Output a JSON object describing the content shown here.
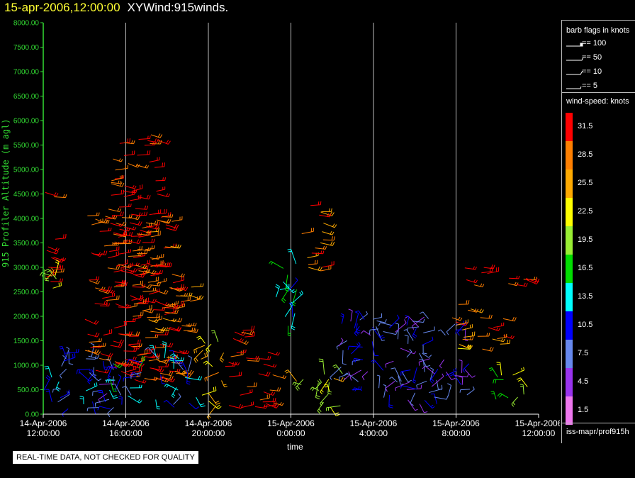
{
  "title": {
    "timestamp": "15-apr-2006,12:00:00",
    "product": "XYWind:915winds."
  },
  "notice": "REAL-TIME DATA, NOT CHECKED FOR QUALITY",
  "legend": {
    "barb_title": "barb flags in knots",
    "barb_entries": [
      "== 100",
      "== 50",
      "== 10",
      "== 5"
    ],
    "color_title": "wind-speed: knots",
    "color_scale": [
      {
        "label": "31.5",
        "color": "#ff0000"
      },
      {
        "label": "28.5",
        "color": "#ff7f00"
      },
      {
        "label": "25.5",
        "color": "#ffaa00"
      },
      {
        "label": "22.5",
        "color": "#ffff00"
      },
      {
        "label": "19.5",
        "color": "#99ee33"
      },
      {
        "label": "16.5",
        "color": "#00dd00"
      },
      {
        "label": "13.5",
        "color": "#00ffff"
      },
      {
        "label": "10.5",
        "color": "#0000ff"
      },
      {
        "label": "7.5",
        "color": "#6688ee"
      },
      {
        "label": "4.5",
        "color": "#9933ee"
      },
      {
        "label": "1.5",
        "color": "#ee77ee"
      }
    ],
    "source": "iss-mapr/prof915h"
  },
  "chart_data": {
    "type": "scatter",
    "xlabel": "time",
    "ylabel": "915 Profiler Altitude (m agl)",
    "x_range": [
      "14-Apr-2006 12:00:00",
      "15-Apr-2006 12:00:00"
    ],
    "ylim": [
      0,
      8000
    ],
    "y_ticks": [
      "0.00",
      "500.00",
      "1000.00",
      "1500.00",
      "2000.00",
      "2500.00",
      "3000.00",
      "3500.00",
      "4000.00",
      "4500.00",
      "5000.00",
      "5500.00",
      "6000.00",
      "6500.00",
      "7000.00",
      "7500.00",
      "8000.00"
    ],
    "x_ticks": [
      {
        "date": "14-Apr-2006",
        "time": "12:00:00"
      },
      {
        "date": "14-Apr-2006",
        "time": "16:00:00"
      },
      {
        "date": "14-Apr-2006",
        "time": "20:00:00"
      },
      {
        "date": "15-Apr-2006",
        "time": "0:00:00"
      },
      {
        "date": "15-Apr-2006",
        "time": "4:00:00"
      },
      {
        "date": "15-Apr-2006",
        "time": "8:00:00"
      },
      {
        "date": "15-Apr-2006",
        "time": "12:00:00"
      }
    ],
    "grid": "vertical",
    "colors": {
      "axis": "#33dd33",
      "grid": "#bbbbbb",
      "background": "#000000"
    },
    "series_note": "wind barbs colored by wind speed (knots)",
    "clusters": [
      {
        "hours": [
          0.0,
          0.6
        ],
        "alt": [
          2500,
          4800
        ],
        "speed": 31
      },
      {
        "hours": [
          0.0,
          0.7
        ],
        "alt": [
          2400,
          3000
        ],
        "speed": 23
      },
      {
        "hours": [
          0.0,
          3.5
        ],
        "alt": [
          100,
          1300
        ],
        "speed": 9
      },
      {
        "hours": [
          2.0,
          4.4
        ],
        "alt": [
          800,
          4500
        ],
        "speed": 31
      },
      {
        "hours": [
          3.2,
          5.6
        ],
        "alt": [
          900,
          5800
        ],
        "speed": 31
      },
      {
        "hours": [
          4.2,
          6.3
        ],
        "alt": [
          700,
          4200
        ],
        "speed": 30
      },
      {
        "hours": [
          5.4,
          7.3
        ],
        "alt": [
          800,
          2700
        ],
        "speed": 28
      },
      {
        "hours": [
          3.0,
          7.5
        ],
        "alt": [
          100,
          1200
        ],
        "speed": 12
      },
      {
        "hours": [
          7.6,
          8.8
        ],
        "alt": [
          100,
          1500
        ],
        "speed": 24
      },
      {
        "hours": [
          8.8,
          11.2
        ],
        "alt": [
          100,
          1300
        ],
        "speed": 31
      },
      {
        "hours": [
          9.1,
          9.9
        ],
        "alt": [
          1400,
          1800
        ],
        "speed": 31
      },
      {
        "hours": [
          11.2,
          12.3
        ],
        "alt": [
          1800,
          3300
        ],
        "speed": 13
      },
      {
        "hours": [
          12.4,
          13.6
        ],
        "alt": [
          2700,
          4300
        ],
        "speed": 29
      },
      {
        "hours": [
          12.2,
          14.6
        ],
        "alt": [
          100,
          900
        ],
        "speed": 21
      },
      {
        "hours": [
          14.3,
          20.8
        ],
        "alt": [
          200,
          2000
        ],
        "speed": 8
      },
      {
        "hours": [
          19.8,
          22.4
        ],
        "alt": [
          1300,
          2300
        ],
        "speed": 27
      },
      {
        "hours": [
          20.3,
          21.6
        ],
        "alt": [
          2600,
          3000
        ],
        "speed": 31
      },
      {
        "hours": [
          22.4,
          23.4
        ],
        "alt": [
          2600,
          2900
        ],
        "speed": 31
      },
      {
        "hours": [
          21.8,
          23.6
        ],
        "alt": [
          200,
          800
        ],
        "speed": 19
      }
    ]
  }
}
